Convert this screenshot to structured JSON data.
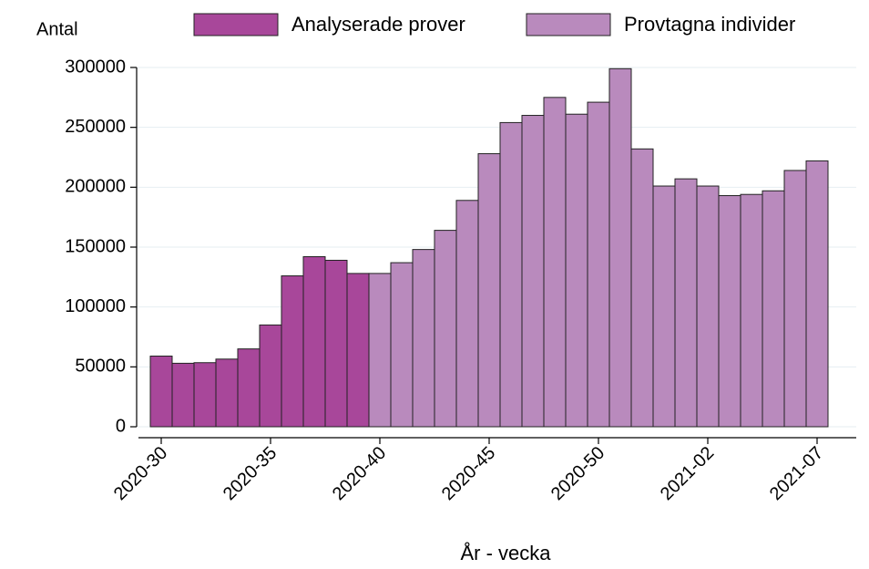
{
  "chart_data": {
    "type": "bar",
    "y_label": "Antal",
    "x_label": "År - vecka",
    "categories": [
      "2020-30",
      null,
      null,
      null,
      null,
      "2020-35",
      null,
      null,
      null,
      null,
      "2020-40",
      null,
      null,
      null,
      null,
      "2020-45",
      null,
      null,
      null,
      null,
      "2020-50",
      null,
      null,
      null,
      null,
      "2021-02",
      null,
      null,
      null,
      null,
      "2021-07"
    ],
    "series": [
      {
        "name": "Analyserade prover",
        "color": "#a8479a",
        "values": [
          59000,
          53000,
          53500,
          56500,
          65000,
          85000,
          126000,
          142000,
          139000,
          128000,
          null,
          null,
          null,
          null,
          null,
          null,
          null,
          null,
          null,
          null,
          null,
          null,
          null,
          null,
          null,
          null,
          null,
          null,
          null,
          null,
          null
        ]
      },
      {
        "name": "Provtagna individer",
        "color": "#b98abd",
        "values": [
          null,
          null,
          null,
          null,
          null,
          null,
          null,
          null,
          null,
          null,
          128000,
          137000,
          148000,
          164000,
          189000,
          228000,
          254000,
          260000,
          275000,
          261000,
          271000,
          299000,
          232000,
          201000,
          207000,
          201000,
          193000,
          194000,
          197000,
          214000,
          222000
        ]
      }
    ],
    "ylim": [
      0,
      300000
    ],
    "yticks": [
      0,
      50000,
      100000,
      150000,
      200000,
      250000,
      300000
    ],
    "grid": true
  }
}
